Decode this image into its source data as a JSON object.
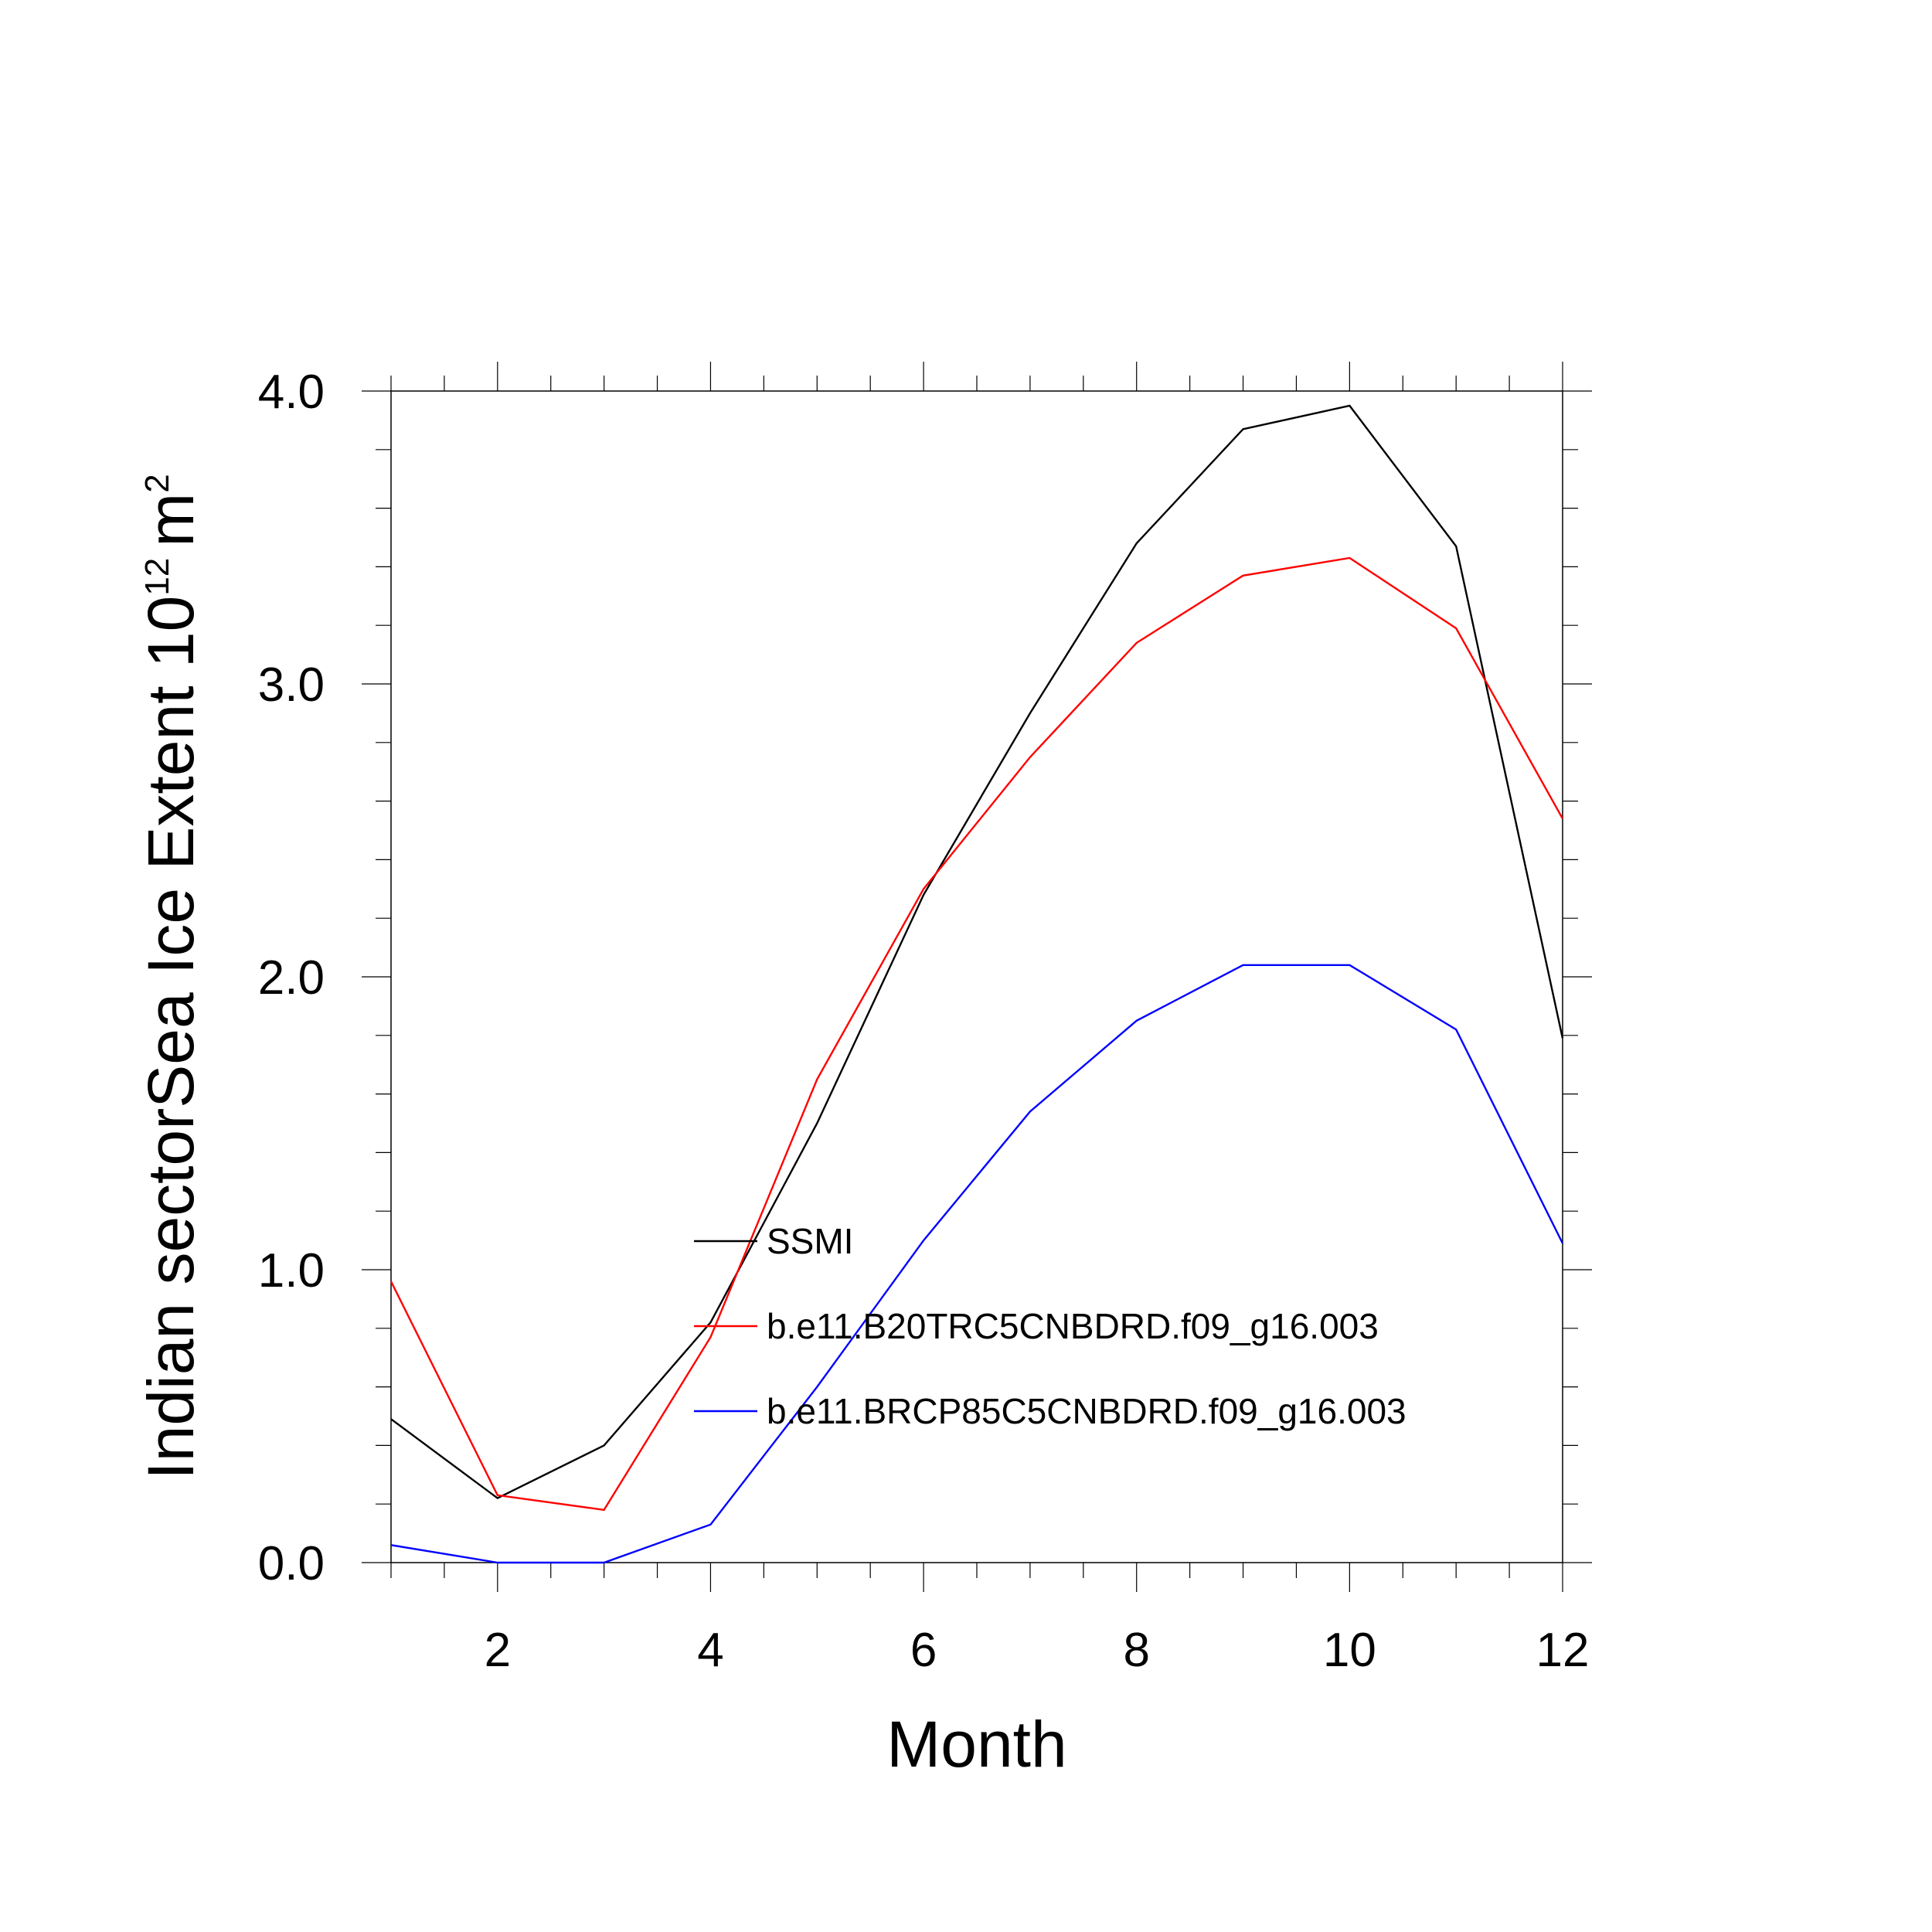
{
  "chart_data": {
    "type": "line",
    "title": "",
    "xlabel": "Month",
    "ylabel": "Indian sectorSea Ice Extent 10",
    "ylabel_exponent": "12",
    "ylabel_unit": "m",
    "ylabel_unit_exponent": "2",
    "xlim": [
      1,
      12
    ],
    "ylim": [
      0,
      4
    ],
    "x_ticks": [
      2,
      4,
      6,
      8,
      10,
      12
    ],
    "x_tick_labels": [
      "2",
      "4",
      "6",
      "8",
      "10",
      "12"
    ],
    "y_ticks": [
      0,
      1,
      2,
      3,
      4
    ],
    "y_tick_labels": [
      "0.0",
      "1.0",
      "2.0",
      "3.0",
      "4.0"
    ],
    "grid": false,
    "legend_position": "center",
    "x": [
      1,
      2,
      3,
      4,
      5,
      6,
      7,
      8,
      9,
      10,
      11,
      12
    ],
    "series": [
      {
        "name": "SSMI",
        "color": "#000000",
        "values": [
          0.49,
          0.22,
          0.4,
          0.82,
          1.5,
          2.28,
          2.9,
          3.48,
          3.87,
          3.95,
          3.47,
          1.79
        ]
      },
      {
        "name": "b.e11.B20TRC5CNBDRD.f09_g16.003",
        "color": "#ff0000",
        "values": [
          0.96,
          0.23,
          0.18,
          0.77,
          1.65,
          2.3,
          2.75,
          3.14,
          3.37,
          3.43,
          3.19,
          2.54
        ]
      },
      {
        "name": "b.e11.BRCP85C5CNBDRD.f09_g16.003",
        "color": "#0000ff",
        "values": [
          0.06,
          0.0,
          0.0,
          0.13,
          0.6,
          1.1,
          1.54,
          1.85,
          2.04,
          2.04,
          1.82,
          1.09
        ]
      }
    ]
  }
}
